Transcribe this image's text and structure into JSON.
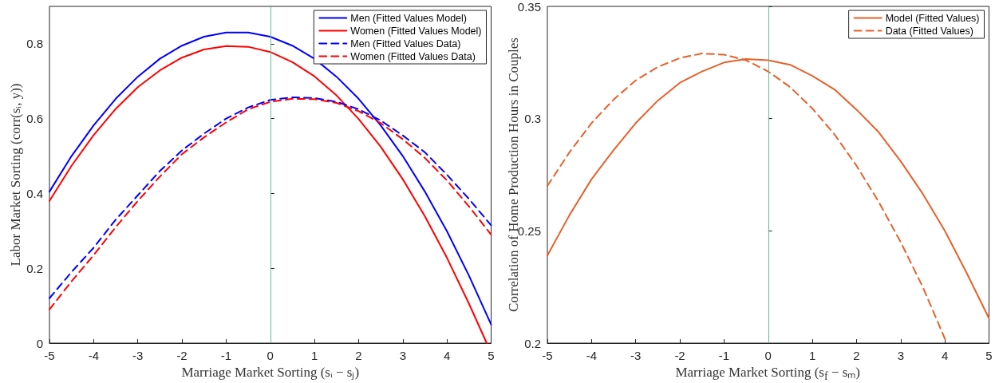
{
  "chart_data": [
    {
      "type": "line",
      "xlabel": "Marriage Market Sorting (sᵢ − sⱼ)",
      "ylabel": "Labor Market Sorting (corr(sᵢ, y))",
      "xlim": [
        -5,
        5
      ],
      "xticks": [
        -5,
        -4,
        -3,
        -2,
        -1,
        0,
        1,
        2,
        3,
        4,
        5
      ],
      "ylim": [
        0,
        0.9
      ],
      "yticks": [
        0,
        0.2,
        0.4,
        0.6,
        0.8
      ],
      "grid": false,
      "legend": "top right",
      "marker": "none",
      "x": [
        -5,
        -4.5,
        -4,
        -3.5,
        -3,
        -2.5,
        -2,
        -1.5,
        -1,
        -0.5,
        0,
        0.5,
        1,
        1.5,
        2,
        2.5,
        3,
        3.5,
        4,
        4.5,
        5
      ],
      "ref_lines": [
        {
          "axis": "x",
          "value": 0,
          "color": "#5fbf8f"
        }
      ],
      "series": [
        {
          "name": "Men (Fitted Values Model)",
          "color": "#0000ff",
          "line_style": "solid",
          "values": [
            0.405,
            0.5,
            0.582,
            0.653,
            0.712,
            0.76,
            0.795,
            0.819,
            0.83,
            0.83,
            0.819,
            0.795,
            0.76,
            0.712,
            0.653,
            0.582,
            0.5,
            0.405,
            0.299,
            0.18,
            0.05
          ]
        },
        {
          "name": "Women (Fitted Values Model)",
          "color": "#ff0000",
          "line_style": "solid",
          "x": [
            -5,
            -4.5,
            -4,
            -3.5,
            -3,
            -2.5,
            -2,
            -1.5,
            -1,
            -0.5,
            0,
            0.5,
            1,
            1.5,
            2,
            2.5,
            3,
            3.5,
            4,
            4.5,
            4.9
          ],
          "values": [
            0.38,
            0.474,
            0.556,
            0.626,
            0.684,
            0.729,
            0.763,
            0.785,
            0.794,
            0.792,
            0.778,
            0.751,
            0.713,
            0.662,
            0.599,
            0.525,
            0.438,
            0.339,
            0.228,
            0.105,
            0
          ]
        },
        {
          "name": "Men (Fitted Values Data)",
          "color": "#0000ff",
          "line_style": "dashed",
          "values": [
            0.12,
            0.19,
            0.255,
            0.33,
            0.395,
            0.46,
            0.515,
            0.56,
            0.6,
            0.63,
            0.65,
            0.657,
            0.655,
            0.645,
            0.625,
            0.595,
            0.555,
            0.51,
            0.45,
            0.385,
            0.315
          ]
        },
        {
          "name": "Women (Fitted Values Data)",
          "color": "#ff0000",
          "line_style": "dashed",
          "values": [
            0.09,
            0.165,
            0.235,
            0.31,
            0.38,
            0.445,
            0.505,
            0.55,
            0.59,
            0.625,
            0.645,
            0.653,
            0.652,
            0.642,
            0.62,
            0.588,
            0.545,
            0.495,
            0.435,
            0.365,
            0.29
          ]
        }
      ]
    },
    {
      "type": "line",
      "xlabel": "Marriage Market Sorting (s$_{f}$ − sₘ)",
      "ylabel": "Correlation of Home Production Hours in Couples",
      "xlim": [
        -5,
        5
      ],
      "xticks": [
        -5,
        -4,
        -3,
        -2,
        -1,
        0,
        1,
        2,
        3,
        4,
        5
      ],
      "ylim": [
        0.2,
        0.35
      ],
      "yticks": [
        0.2,
        0.25,
        0.3,
        0.35
      ],
      "grid": false,
      "legend": "top right",
      "marker": "none",
      "x": [
        -5,
        -4.5,
        -4,
        -3.5,
        -3,
        -2.5,
        -2,
        -1.5,
        -1,
        -0.5,
        0,
        0.5,
        1,
        1.5,
        2,
        2.5,
        3,
        3.5,
        4,
        4.5,
        5
      ],
      "ref_lines": [
        {
          "axis": "x",
          "value": 0,
          "color": "#5fbf8f"
        }
      ],
      "series": [
        {
          "name": "Model (Fitted Values)",
          "color": "#e8602a",
          "line_style": "solid",
          "values": [
            0.239,
            0.257,
            0.273,
            0.286,
            0.298,
            0.308,
            0.316,
            0.321,
            0.325,
            0.3265,
            0.326,
            0.324,
            0.319,
            0.313,
            0.304,
            0.294,
            0.281,
            0.2665,
            0.25,
            0.231,
            0.211
          ]
        },
        {
          "name": "Data (Fitted Values)",
          "color": "#e8602a",
          "line_style": "dashed",
          "x": [
            -5,
            -4.5,
            -4,
            -3.5,
            -3,
            -2.5,
            -2,
            -1.5,
            -1,
            -0.5,
            0,
            0.5,
            1,
            1.5,
            2,
            2.5,
            3,
            3.5,
            4,
            4.05
          ],
          "values": [
            0.27,
            0.285,
            0.298,
            0.3085,
            0.317,
            0.323,
            0.327,
            0.329,
            0.3285,
            0.326,
            0.321,
            0.314,
            0.3045,
            0.293,
            0.279,
            0.263,
            0.245,
            0.225,
            0.202,
            0.2
          ]
        }
      ]
    }
  ]
}
